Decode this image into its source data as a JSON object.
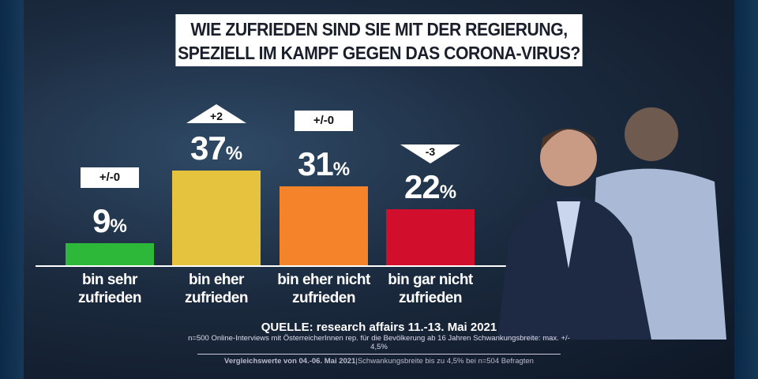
{
  "title_lines": [
    "WIE ZUFRIEDEN SIND SIE MIT DER REGIERUNG,",
    "SPEZIELL IM KAMPF GEGEN DAS CORONA-VIRUS?"
  ],
  "chart_data": {
    "type": "bar",
    "title": "WIE ZUFRIEDEN SIND SIE MIT DER REGIERUNG, SPEZIELL IM KAMPF GEGEN DAS CORONA-VIRUS?",
    "categories": [
      [
        "bin sehr",
        "zufrieden"
      ],
      [
        "bin eher",
        "zufrieden"
      ],
      [
        "bin eher nicht",
        "zufrieden"
      ],
      [
        "bin gar nicht",
        "zufrieden"
      ]
    ],
    "values": [
      9,
      37,
      31,
      22
    ],
    "unit": "%",
    "changes": [
      {
        "label": "+/-0",
        "direction": "none"
      },
      {
        "label": "+2",
        "direction": "up"
      },
      {
        "label": "+/-0",
        "direction": "none"
      },
      {
        "label": "-3",
        "direction": "down"
      }
    ],
    "colors": [
      "#2db83a",
      "#e6c33e",
      "#f4832a",
      "#d10f2c"
    ],
    "ylim": [
      0,
      40
    ],
    "grid": false
  },
  "source": {
    "quelle": "QUELLE: research affairs 11.-13. Mai 2021",
    "method": "n=500 Online-Interviews mit ÖsterreicherInnen rep. für die Bevölkerung ab 16 Jahren  Schwankungsbreite: max. +/- 4,5%",
    "vergleich_bold": "Vergleichswerte von  04.-06. Mai 2021",
    "vergleich_rest": "|Schwankungsbreite bis zu 4,5% bei n=504 Befragten"
  }
}
